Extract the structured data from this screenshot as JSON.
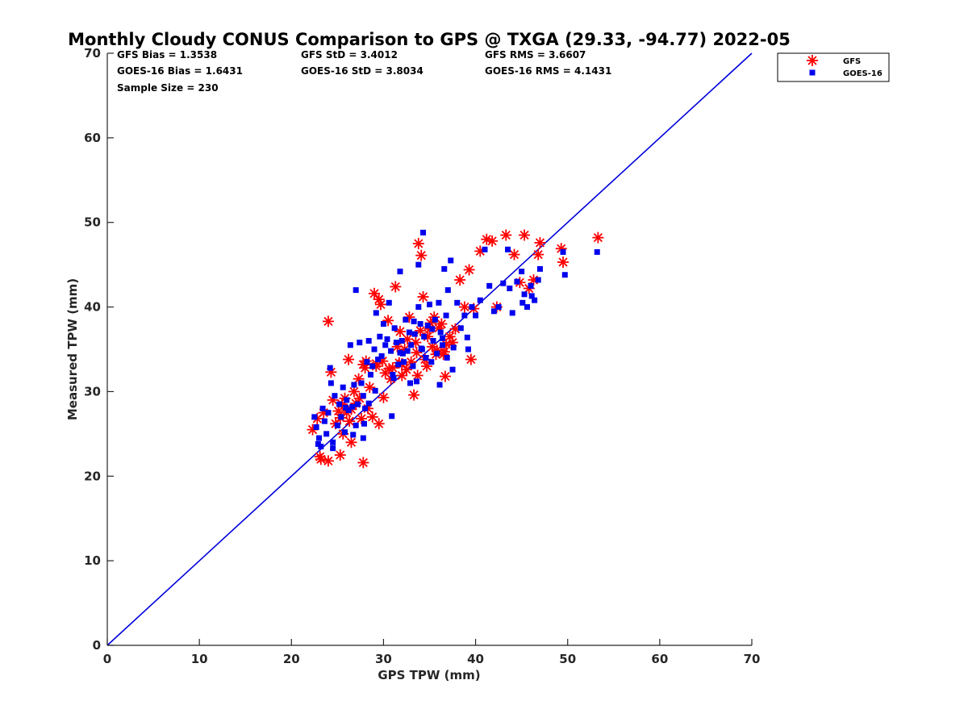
{
  "chart_data": {
    "type": "scatter",
    "title": "Monthly Cloudy CONUS Comparison to GPS @ TXGA (29.33, -94.77) 2022-05",
    "xlabel": "GPS TPW (mm)",
    "ylabel": "Measured TPW (mm)",
    "xlim": [
      0,
      70
    ],
    "ylim": [
      0,
      70
    ],
    "xticks": [
      "0",
      "10",
      "20",
      "30",
      "40",
      "50",
      "60",
      "70"
    ],
    "yticks": [
      "0",
      "10",
      "20",
      "30",
      "40",
      "50",
      "60",
      "70"
    ],
    "grid": false,
    "legend_position": "top-right",
    "stats": {
      "gfs_bias": "GFS Bias = 1.3538",
      "goes_bias": "GOES-16 Bias = 1.6431",
      "sample_size": "Sample Size = 230",
      "gfs_std": "GFS StD = 3.4012",
      "goes_std": "GOES-16 StD = 3.8034",
      "gfs_rms": "GFS RMS = 3.6607",
      "goes_rms": "GOES-16 RMS = 4.1431"
    },
    "reference_line": {
      "x": [
        0,
        70
      ],
      "y": [
        0,
        70
      ],
      "color": "#0000dd"
    },
    "series": [
      {
        "name": "GFS",
        "marker": "asterisk",
        "color": "#ff0000",
        "x": [
          22.3,
          22.8,
          23.1,
          23.5,
          24.0,
          24.3,
          24.5,
          24.8,
          25.1,
          25.3,
          25.5,
          25.8,
          26.0,
          26.2,
          26.5,
          26.8,
          27.0,
          27.3,
          27.6,
          27.8,
          28.0,
          28.3,
          28.5,
          28.8,
          29.0,
          29.2,
          29.5,
          29.7,
          30.0,
          30.2,
          30.5,
          30.8,
          31.0,
          31.3,
          31.5,
          31.8,
          32.0,
          32.3,
          32.5,
          32.8,
          33.0,
          33.3,
          33.5,
          33.7,
          34.0,
          34.3,
          34.5,
          34.8,
          35.0,
          35.3,
          35.5,
          35.8,
          36.0,
          36.3,
          36.5,
          36.8,
          37.2,
          37.8,
          38.3,
          38.8,
          39.3,
          39.8,
          40.5,
          41.2,
          41.8,
          42.3,
          43.3,
          44.2,
          44.8,
          45.3,
          45.8,
          46.3,
          46.8,
          47.0,
          49.3,
          49.5,
          53.3,
          24.0,
          23.2,
          27.8,
          25.6,
          26.5,
          29.5,
          29.2,
          33.8,
          34.1,
          32.0,
          25.3,
          26.3,
          27.4,
          28.1,
          29.9,
          30.6,
          31.7,
          32.6,
          33.6,
          34.7,
          35.7,
          36.7,
          39.5,
          36.6,
          35.1,
          37.5
        ],
        "y": [
          25.5,
          26.8,
          22.3,
          27.5,
          21.8,
          32.3,
          29.0,
          26.2,
          27.7,
          22.5,
          28.5,
          29.2,
          27.5,
          33.8,
          24.0,
          30.0,
          28.6,
          31.5,
          26.8,
          33.2,
          32.8,
          28.0,
          30.5,
          27.0,
          41.6,
          33.0,
          26.2,
          40.3,
          29.3,
          32.2,
          38.4,
          31.5,
          32.8,
          42.4,
          35.3,
          37.1,
          31.9,
          35.0,
          32.6,
          38.8,
          33.5,
          29.6,
          35.8,
          31.9,
          37.2,
          41.2,
          33.8,
          36.5,
          37.4,
          35.3,
          38.8,
          34.9,
          37.5,
          38.0,
          34.4,
          35.6,
          36.5,
          37.4,
          43.2,
          40.0,
          44.4,
          39.8,
          46.6,
          48.0,
          47.8,
          40.0,
          48.5,
          46.2,
          42.9,
          48.5,
          42.2,
          43.2,
          46.2,
          47.6,
          46.9,
          45.3,
          48.2,
          38.3,
          22.0,
          21.6,
          25.0,
          27.9,
          40.9,
          33.3,
          47.5,
          46.1,
          33.3,
          26.9,
          26.5,
          29.2,
          33.6,
          33.6,
          32.7,
          33.4,
          36.2,
          34.6,
          33.0,
          34.4,
          31.8,
          33.8,
          34.7,
          38.1,
          35.8
        ]
      },
      {
        "name": "GOES-16",
        "marker": "square",
        "color": "#0000ee",
        "x": [
          22.5,
          22.7,
          23.0,
          23.2,
          23.4,
          23.6,
          23.8,
          24.0,
          24.3,
          24.5,
          24.7,
          25.0,
          25.2,
          25.4,
          25.6,
          25.8,
          26.0,
          26.2,
          26.4,
          26.6,
          26.8,
          27.0,
          27.2,
          27.4,
          27.6,
          27.8,
          28.0,
          28.2,
          28.4,
          28.6,
          28.8,
          29.0,
          29.2,
          29.4,
          29.6,
          29.8,
          30.0,
          30.2,
          30.4,
          30.6,
          30.8,
          31.0,
          31.2,
          31.4,
          31.6,
          31.8,
          32.0,
          32.2,
          32.4,
          32.6,
          32.8,
          33.0,
          33.2,
          33.4,
          33.6,
          33.8,
          34.0,
          34.2,
          34.4,
          34.6,
          34.8,
          35.0,
          35.2,
          35.4,
          35.6,
          35.8,
          36.0,
          36.2,
          36.4,
          36.6,
          36.8,
          37.0,
          37.3,
          37.6,
          38.0,
          38.4,
          38.8,
          39.2,
          39.6,
          40.0,
          40.5,
          41.0,
          41.5,
          42.0,
          42.5,
          43.0,
          43.5,
          44.0,
          44.5,
          45.0,
          45.3,
          45.6,
          46.0,
          46.4,
          46.8,
          47.0,
          49.5,
          49.7,
          53.2,
          24.2,
          25.0,
          27.0,
          27.8,
          28.4,
          31.8,
          33.8,
          36.4,
          37.5,
          24.5,
          25.9,
          26.7,
          27.9,
          29.1,
          30.9,
          31.1,
          32.1,
          32.9,
          33.3,
          34.1,
          35.3,
          36.9,
          39.1,
          45.1,
          46.1,
          43.7,
          36.1,
          34.3,
          22.9
        ],
        "y": [
          27.0,
          25.8,
          24.5,
          23.5,
          28.0,
          26.5,
          25.0,
          27.5,
          31.0,
          24.0,
          29.5,
          26.0,
          28.5,
          27.0,
          30.5,
          25.2,
          29.0,
          27.8,
          35.5,
          28.2,
          30.8,
          42.0,
          28.5,
          35.8,
          31.0,
          29.5,
          28.0,
          33.5,
          36.0,
          32.0,
          33.0,
          35.0,
          39.3,
          33.8,
          36.5,
          34.2,
          38.0,
          35.5,
          36.2,
          40.5,
          34.8,
          32.0,
          37.5,
          35.8,
          33.2,
          44.2,
          36.0,
          33.5,
          38.5,
          34.8,
          37.0,
          35.5,
          33.0,
          36.8,
          31.2,
          45.0,
          38.0,
          35.0,
          36.5,
          34.0,
          37.8,
          40.3,
          33.5,
          36.0,
          38.5,
          34.5,
          40.5,
          37.0,
          35.5,
          44.5,
          39.0,
          42.0,
          45.5,
          35.2,
          40.5,
          37.5,
          39.0,
          35.0,
          40.0,
          39.0,
          40.8,
          46.8,
          42.5,
          39.5,
          40.0,
          42.8,
          46.8,
          39.3,
          43.0,
          44.2,
          41.5,
          40.0,
          42.5,
          40.8,
          43.2,
          44.5,
          46.5,
          43.8,
          46.5,
          32.8,
          26.0,
          26.0,
          24.5,
          28.6,
          34.6,
          40.0,
          36.3,
          32.6,
          23.3,
          28.1,
          24.9,
          26.2,
          30.1,
          27.1,
          31.6,
          34.5,
          31.0,
          38.3,
          35.1,
          37.4,
          34.0,
          36.4,
          40.5,
          41.3,
          42.2,
          30.8,
          48.8,
          23.8
        ]
      }
    ]
  }
}
